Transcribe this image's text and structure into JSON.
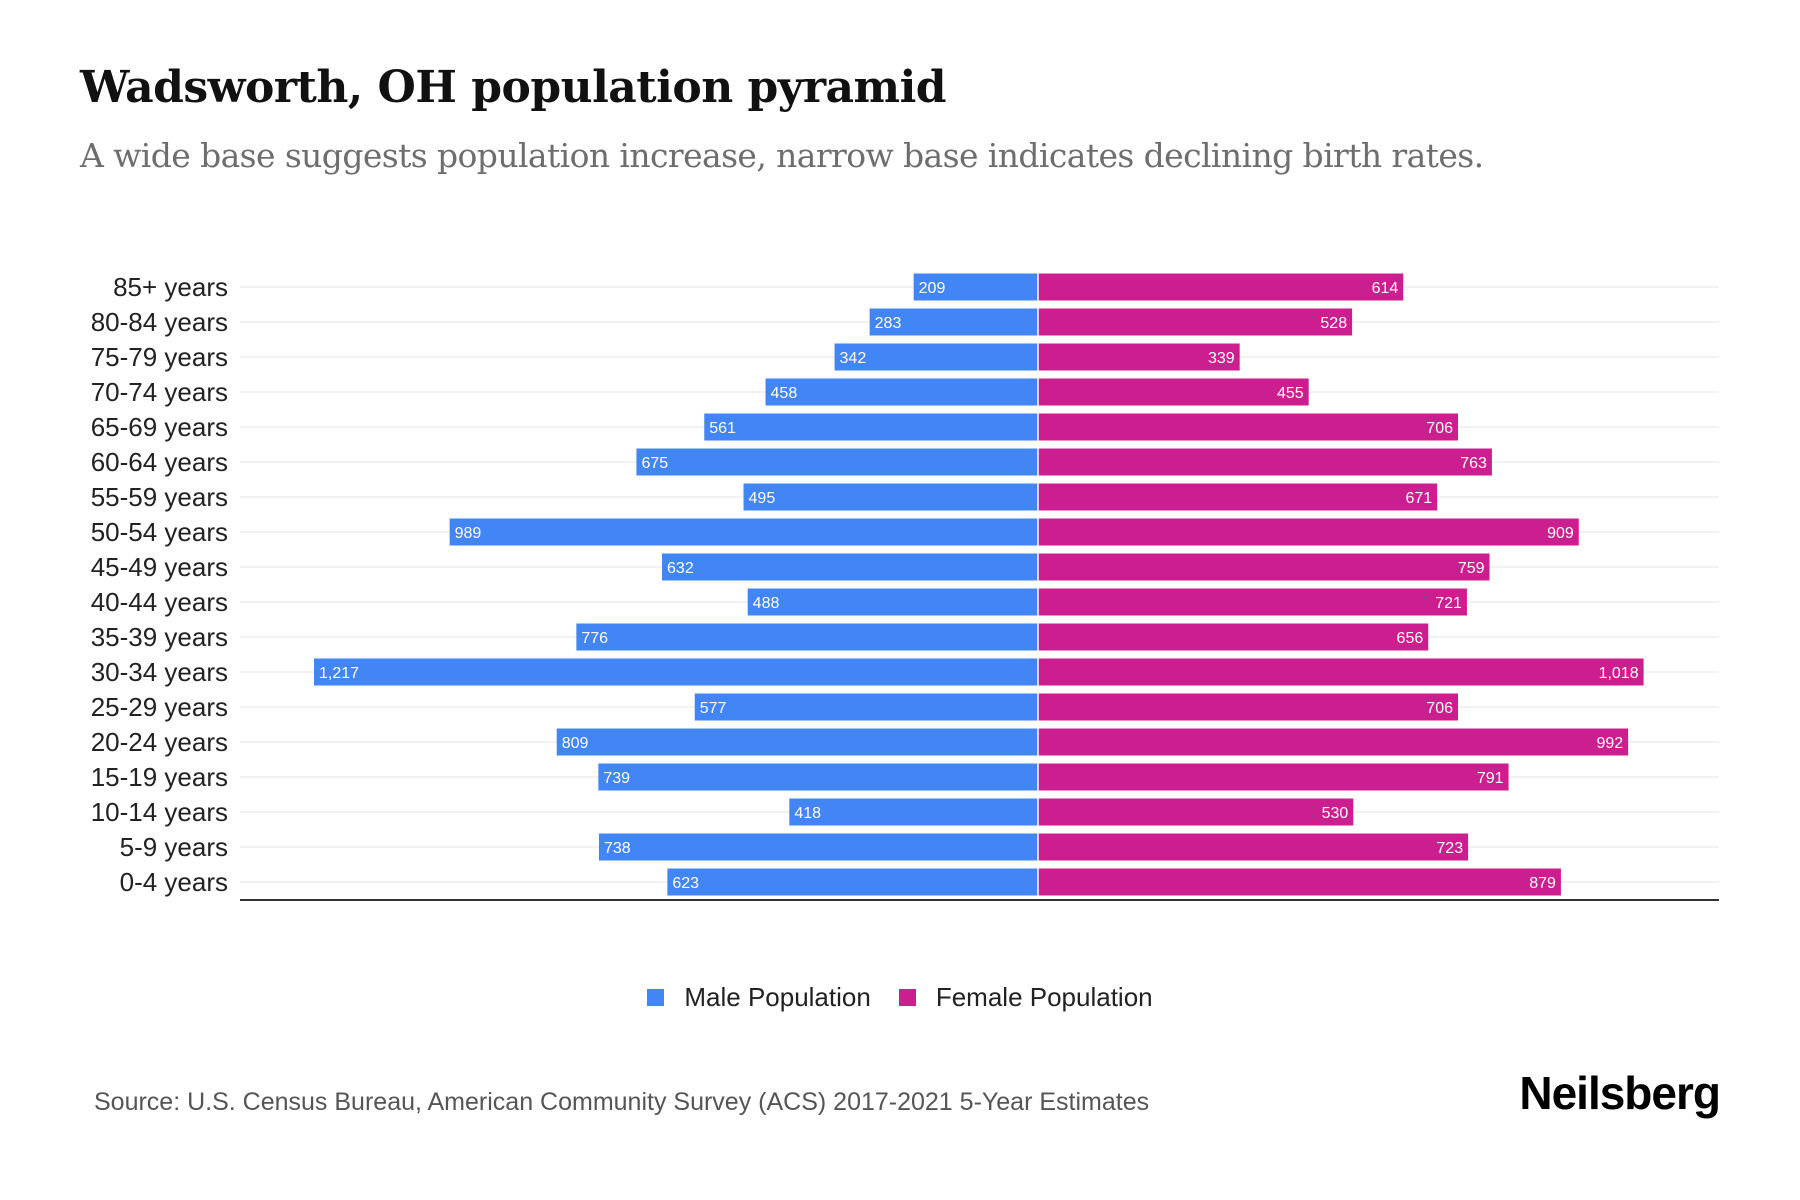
{
  "header": {
    "title": "Wadsworth, OH population pyramid",
    "subtitle": "A wide base suggests population increase, narrow base indicates declining birth rates."
  },
  "colors": {
    "male": "#4285f4",
    "female": "#cc1f8f",
    "gridline": "#eeeeee",
    "axis": "#333333",
    "bar_label": "#ffffff",
    "category_label": "#222222"
  },
  "chart_data": {
    "type": "bar",
    "orientation": "horizontal",
    "layout": "population-pyramid",
    "title": "Wadsworth, OH population pyramid",
    "subtitle": "A wide base suggests population increase, narrow base indicates declining birth rates.",
    "xlabel": "",
    "ylabel": "",
    "grid": true,
    "legend_position": "bottom-center",
    "categories": [
      "85+ years",
      "80-84 years",
      "75-79 years",
      "70-74 years",
      "65-69 years",
      "60-64 years",
      "55-59 years",
      "50-54 years",
      "45-49 years",
      "40-44 years",
      "35-39 years",
      "30-34 years",
      "25-29 years",
      "20-24 years",
      "15-19 years",
      "10-14 years",
      "5-9 years",
      "0-4 years"
    ],
    "series": [
      {
        "name": "Male Population",
        "side": "left",
        "values": [
          209,
          283,
          342,
          458,
          561,
          675,
          495,
          989,
          632,
          488,
          776,
          1217,
          577,
          809,
          739,
          418,
          738,
          623
        ],
        "labels": [
          "209",
          "283",
          "342",
          "458",
          "561",
          "675",
          "495",
          "989",
          "632",
          "488",
          "776",
          "1,217",
          "577",
          "809",
          "739",
          "418",
          "738",
          "623"
        ]
      },
      {
        "name": "Female Population",
        "side": "right",
        "values": [
          614,
          528,
          339,
          455,
          706,
          763,
          671,
          909,
          759,
          721,
          656,
          1018,
          706,
          992,
          791,
          530,
          723,
          879
        ],
        "labels": [
          "614",
          "528",
          "339",
          "455",
          "706",
          "763",
          "671",
          "909",
          "759",
          "721",
          "656",
          "1,018",
          "706",
          "992",
          "791",
          "530",
          "723",
          "879"
        ]
      }
    ],
    "xlim": [
      -1217,
      1217
    ]
  },
  "legend": {
    "items": [
      {
        "label": "Male Population",
        "color": "#4285f4"
      },
      {
        "label": "Female Population",
        "color": "#cc1f8f"
      }
    ]
  },
  "footer": {
    "source": "Source: U.S. Census Bureau, American Community Survey (ACS) 2017-2021 5-Year Estimates",
    "brand": "Neilsberg"
  }
}
